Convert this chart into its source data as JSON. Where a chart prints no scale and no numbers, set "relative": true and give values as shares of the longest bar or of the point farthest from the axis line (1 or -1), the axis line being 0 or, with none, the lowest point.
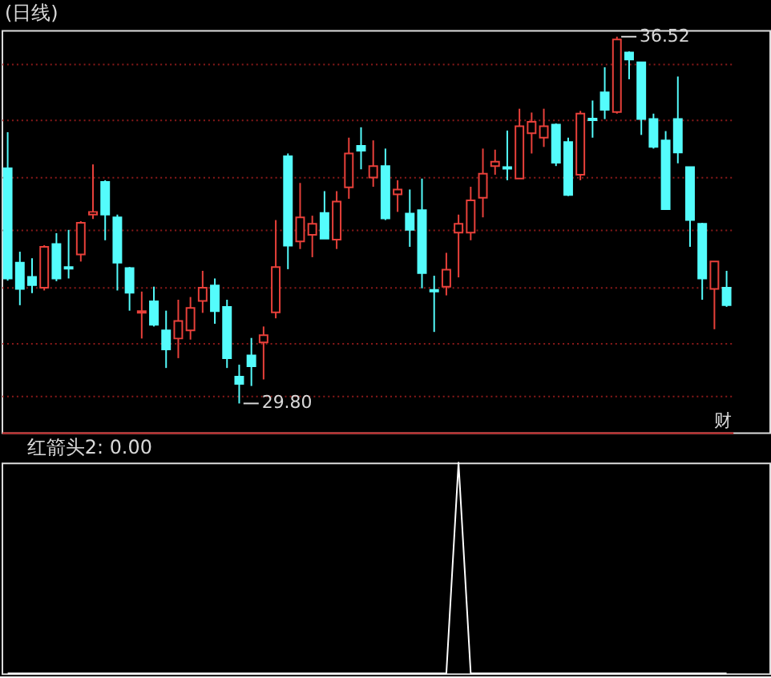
{
  "chart_data": [
    {
      "type": "candlestick",
      "title": "(日线)",
      "categories": [
        null,
        null,
        null,
        null,
        null,
        null,
        null,
        null,
        null,
        null,
        null,
        null,
        null,
        null,
        null,
        null,
        null,
        null,
        null,
        null,
        null,
        null,
        null,
        null,
        null,
        null,
        null,
        null,
        null,
        null,
        null,
        null,
        null,
        null,
        null,
        null,
        null,
        null,
        null,
        null,
        null,
        null,
        null,
        null,
        null,
        null,
        null,
        null,
        null,
        null,
        null,
        null,
        null,
        null,
        null,
        null,
        null,
        null,
        null,
        null
      ],
      "ohlc": [
        [
          34.11,
          34.77,
          32.05,
          32.09
        ],
        [
          32.38,
          32.58,
          31.6,
          31.9
        ],
        [
          32.12,
          32.46,
          31.82,
          31.97
        ],
        [
          31.92,
          32.7,
          31.87,
          32.67
        ],
        [
          32.72,
          32.92,
          32.04,
          32.09
        ],
        [
          32.3,
          32.98,
          32.09,
          32.27
        ],
        [
          32.53,
          33.14,
          32.4,
          33.11
        ],
        [
          33.26,
          34.18,
          33.18,
          33.31
        ],
        [
          33.86,
          33.89,
          32.79,
          33.26
        ],
        [
          33.21,
          33.26,
          31.87,
          32.38
        ],
        [
          32.28,
          32.3,
          31.5,
          31.83
        ],
        [
          31.46,
          31.85,
          30.99,
          31.49
        ],
        [
          31.67,
          31.94,
          31.21,
          31.24
        ],
        [
          31.14,
          31.5,
          30.45,
          30.79
        ],
        [
          30.99,
          31.7,
          30.63,
          31.31
        ],
        [
          31.14,
          31.75,
          30.97,
          31.55
        ],
        [
          31.68,
          32.23,
          31.46,
          31.92
        ],
        [
          31.96,
          32.09,
          31.26,
          31.49
        ],
        [
          31.57,
          31.7,
          30.45,
          30.63
        ],
        [
          30.29,
          30.51,
          29.8,
          30.16
        ],
        [
          30.68,
          31.0,
          30.12,
          30.48
        ],
        [
          30.92,
          31.21,
          30.24,
          31.05
        ],
        [
          31.47,
          33.16,
          31.36,
          32.3
        ],
        [
          34.33,
          34.38,
          32.26,
          32.69
        ],
        [
          32.77,
          33.84,
          32.63,
          33.21
        ],
        [
          32.89,
          33.24,
          32.48,
          33.09
        ],
        [
          33.29,
          33.69,
          32.82,
          32.82
        ],
        [
          32.8,
          33.69,
          32.63,
          33.5
        ],
        [
          33.76,
          34.67,
          33.55,
          34.38
        ],
        [
          34.52,
          34.86,
          34.09,
          34.43
        ],
        [
          33.94,
          34.62,
          33.77,
          34.15
        ],
        [
          34.15,
          34.47,
          33.16,
          33.19
        ],
        [
          33.63,
          33.89,
          33.31,
          33.72
        ],
        [
          33.28,
          33.72,
          32.67,
          32.98
        ],
        [
          33.34,
          33.92,
          31.91,
          32.19
        ],
        [
          31.88,
          32.14,
          31.11,
          31.85
        ],
        [
          31.94,
          32.56,
          31.78,
          32.25
        ],
        [
          32.93,
          33.26,
          32.11,
          33.09
        ],
        [
          32.93,
          33.77,
          32.79,
          33.52
        ],
        [
          33.57,
          34.47,
          33.21,
          34.01
        ],
        [
          34.15,
          34.45,
          33.99,
          34.23
        ],
        [
          34.13,
          34.8,
          33.89,
          34.1
        ],
        [
          33.92,
          35.2,
          33.92,
          34.88
        ],
        [
          34.75,
          35.13,
          34.38,
          34.96
        ],
        [
          34.67,
          35.2,
          34.5,
          34.88
        ],
        [
          34.91,
          34.93,
          34.15,
          34.21
        ],
        [
          34.59,
          34.67,
          33.6,
          33.62
        ],
        [
          33.99,
          35.16,
          33.89,
          35.11
        ],
        [
          35.02,
          35.35,
          34.67,
          34.99
        ],
        [
          35.5,
          35.96,
          35.01,
          35.18
        ],
        [
          35.14,
          36.52,
          35.11,
          36.47
        ],
        [
          36.23,
          36.25,
          35.74,
          36.1
        ],
        [
          36.05,
          36.05,
          34.72,
          35.01
        ],
        [
          35.01,
          35.11,
          34.47,
          34.5
        ],
        [
          34.62,
          34.79,
          33.36,
          33.36
        ],
        [
          35.01,
          35.79,
          34.2,
          34.4
        ],
        [
          34.13,
          34.13,
          32.67,
          33.16
        ],
        [
          33.09,
          33.11,
          31.7,
          32.09
        ],
        [
          31.9,
          32.4,
          31.16,
          32.4
        ],
        [
          31.92,
          32.23,
          31.57,
          31.6
        ]
      ],
      "colors": [
        "#54fcfc",
        "#54fcfc",
        "#54fcfc",
        "#e8403a",
        "#54fcfc",
        "#54fcfc",
        "#e8403a",
        "#e8403a",
        "#54fcfc",
        "#54fcfc",
        "#54fcfc",
        "#e8403a",
        "#54fcfc",
        "#54fcfc",
        "#e8403a",
        "#e8403a",
        "#e8403a",
        "#54fcfc",
        "#54fcfc",
        "#54fcfc",
        "#54fcfc",
        "#e8403a",
        "#e8403a",
        "#54fcfc",
        "#e8403a",
        "#e8403a",
        "#54fcfc",
        "#e8403a",
        "#e8403a",
        "#54fcfc",
        "#e8403a",
        "#54fcfc",
        "#e8403a",
        "#54fcfc",
        "#54fcfc",
        "#54fcfc",
        "#e8403a",
        "#e8403a",
        "#e8403a",
        "#e8403a",
        "#e8403a",
        "#54fcfc",
        "#e8403a",
        "#e8403a",
        "#e8403a",
        "#54fcfc",
        "#54fcfc",
        "#e8403a",
        "#54fcfc",
        "#54fcfc",
        "#e8403a",
        "#54fcfc",
        "#54fcfc",
        "#54fcfc",
        "#54fcfc",
        "#54fcfc",
        "#54fcfc",
        "#54fcfc",
        "#e8403a",
        "#54fcfc"
      ],
      "ylim": [
        29.27,
        36.64
      ],
      "yticks": [
        {
          "value": 36.03,
          "label": null
        },
        {
          "value": 35.01,
          "label": null
        },
        {
          "value": 33.94,
          "label": null
        },
        {
          "value": 32.98,
          "label": null
        },
        {
          "value": 31.94,
          "label": null
        },
        {
          "value": 30.92,
          "label": null
        },
        {
          "value": 29.95,
          "label": null
        }
      ],
      "grid": "y",
      "tick_labels": false,
      "annotations": [
        "36.52",
        "29.80",
        "财"
      ]
    },
    {
      "type": "line",
      "title": "红箭头2: 0.00",
      "categories": [
        null,
        null,
        null,
        null,
        null,
        null,
        null,
        null,
        null,
        null,
        null,
        null,
        null,
        null,
        null,
        null,
        null,
        null,
        null,
        null,
        null,
        null,
        null,
        null,
        null,
        null,
        null,
        null,
        null,
        null,
        null,
        null,
        null,
        null,
        null,
        null,
        null,
        null,
        null,
        null,
        null,
        null,
        null,
        null,
        null,
        null,
        null,
        null,
        null,
        null,
        null,
        null,
        null,
        null,
        null,
        null,
        null,
        null,
        null,
        null
      ],
      "relative": true,
      "series": [
        {
          "color": "#ffffff",
          "values": [
            0,
            0,
            0,
            0,
            0,
            0,
            0,
            0,
            0,
            0,
            0,
            0,
            0,
            0,
            0,
            0,
            0,
            0,
            0,
            0,
            0,
            0,
            0,
            0,
            0,
            0,
            0,
            0,
            0,
            0,
            0,
            0,
            0,
            0,
            0,
            0,
            0,
            1,
            0,
            0,
            0,
            0,
            0,
            0,
            0,
            0,
            0,
            0,
            0,
            0,
            0,
            0,
            0,
            0,
            0,
            0,
            0,
            0,
            0,
            0
          ]
        }
      ],
      "tick_labels": false
    }
  ]
}
